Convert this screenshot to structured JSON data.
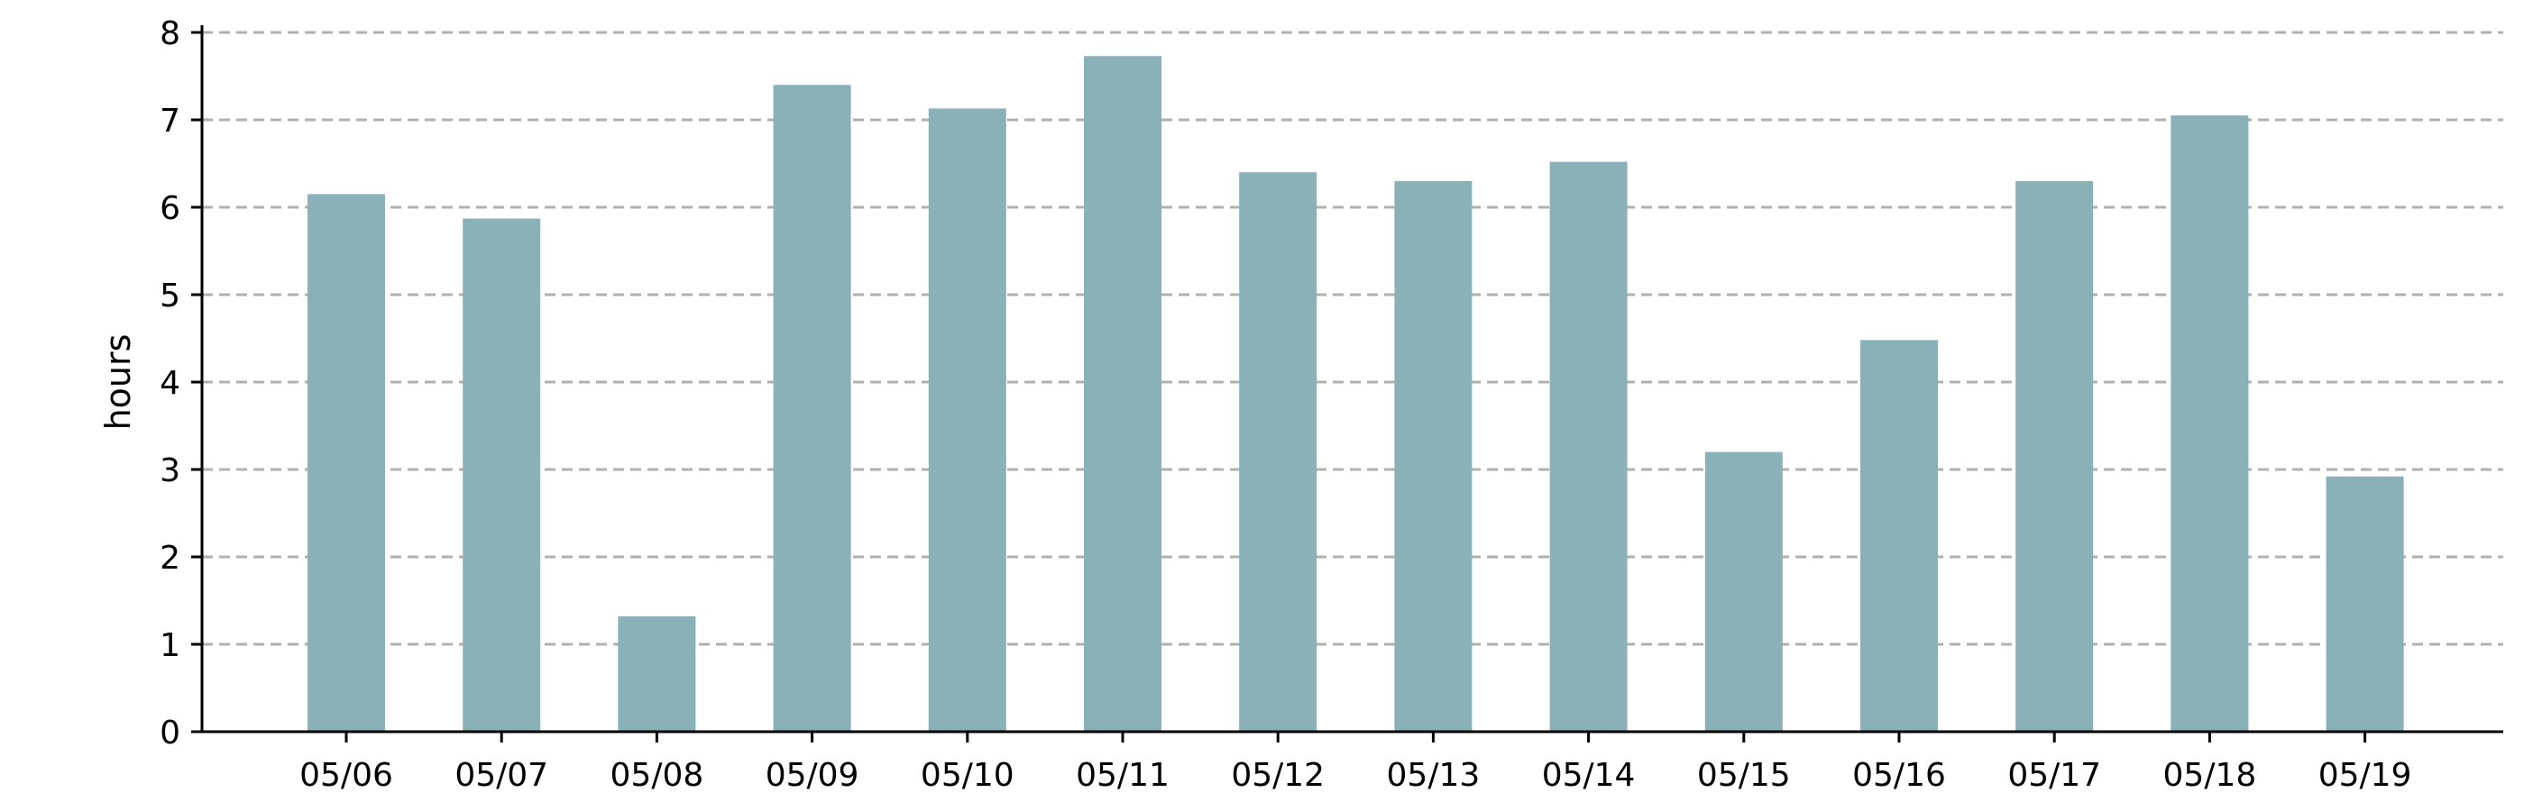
{
  "chart_data": {
    "type": "bar",
    "categories": [
      "05/06",
      "05/07",
      "05/08",
      "05/09",
      "05/10",
      "05/11",
      "05/12",
      "05/13",
      "05/14",
      "05/15",
      "05/16",
      "05/17",
      "05/18",
      "05/19"
    ],
    "values": [
      6.15,
      5.87,
      1.32,
      7.4,
      7.13,
      7.73,
      6.4,
      6.3,
      6.52,
      3.2,
      4.48,
      6.3,
      7.05,
      2.92
    ],
    "title": "",
    "xlabel": "",
    "ylabel": "hours",
    "ylim": [
      0,
      8
    ],
    "yticks": [
      "0",
      "1",
      "2",
      "3",
      "4",
      "5",
      "6",
      "7",
      "8"
    ],
    "grid": "horizontal dashed",
    "bar_color": "#89b1b7",
    "grid_color": "#b0b0b0"
  }
}
